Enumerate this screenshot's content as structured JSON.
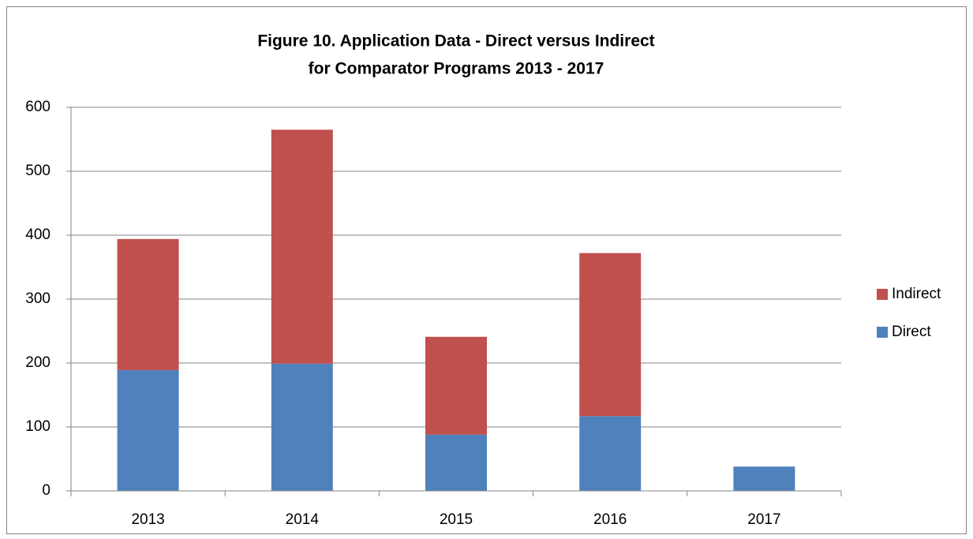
{
  "chart_data": {
    "type": "stacked_bar",
    "title": "Figure 10.  Application Data - Direct versus Indirect",
    "subtitle": "for Comparator Programs 2013 - 2017",
    "categories": [
      "2013",
      "2014",
      "2015",
      "2016",
      "2017"
    ],
    "series": [
      {
        "name": "Direct",
        "color": "#4f81bd",
        "values": [
          189,
          199,
          88,
          117,
          38
        ]
      },
      {
        "name": "Indirect",
        "color": "#c0504d",
        "values": [
          205,
          366,
          153,
          255,
          0
        ]
      }
    ],
    "ylim": [
      0,
      600
    ],
    "yticks": [
      0,
      100,
      200,
      300,
      400,
      500,
      600
    ],
    "grid": true,
    "legend": "right"
  }
}
